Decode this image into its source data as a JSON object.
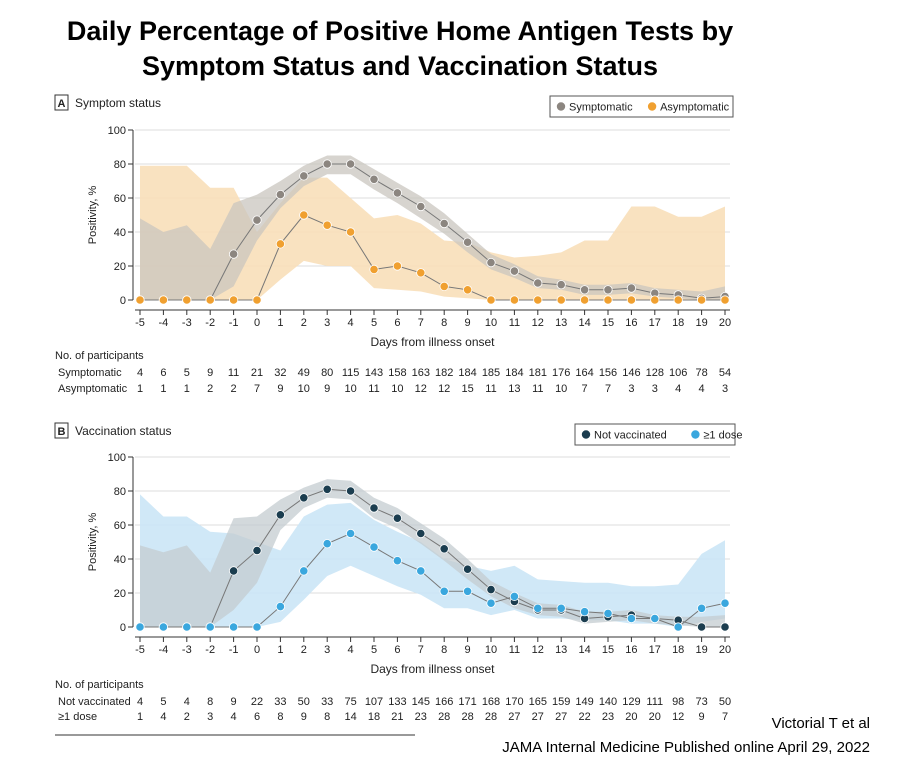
{
  "title": {
    "line1": "Daily Percentage of Positive Home Antigen Tests by",
    "line2": "Symptom Status and Vaccination Status"
  },
  "citation": {
    "line1": "Victorial T et al",
    "line2": "JAMA Internal Medicine Published online April 29, 2022"
  },
  "chart_data": [
    {
      "type": "line",
      "panel_letter": "A",
      "panel_title": "Symptom status",
      "xlabel": "Days from illness onset",
      "ylabel": "Positivity, %",
      "x": [
        -5,
        -4,
        -3,
        -2,
        -1,
        0,
        1,
        2,
        3,
        4,
        5,
        6,
        7,
        8,
        9,
        10,
        11,
        12,
        13,
        14,
        15,
        16,
        17,
        18,
        19,
        20
      ],
      "ylim": [
        0,
        100
      ],
      "yticks": [
        0,
        20,
        40,
        60,
        80,
        100
      ],
      "grid": "horizontal",
      "legend_position": "top-right",
      "series": [
        {
          "name": "Symptomatic",
          "color": "#8c8680",
          "band_color": "#c9c5bf",
          "values": [
            0,
            0,
            0,
            0,
            27,
            47,
            62,
            73,
            80,
            80,
            71,
            63,
            55,
            45,
            34,
            22,
            17,
            10,
            9,
            6,
            6,
            7,
            4,
            3,
            1,
            2
          ],
          "lower": [
            0,
            0,
            0,
            0,
            8,
            35,
            54,
            67,
            74,
            74,
            65,
            57,
            48,
            39,
            28,
            18,
            13,
            7,
            6,
            3,
            3,
            4,
            2,
            1,
            0,
            0
          ],
          "upper": [
            48,
            40,
            44,
            30,
            57,
            62,
            70,
            79,
            85,
            85,
            77,
            69,
            61,
            51,
            39,
            27,
            21,
            14,
            12,
            9,
            9,
            10,
            7,
            6,
            5,
            8
          ]
        },
        {
          "name": "Asymptomatic",
          "color": "#f0a030",
          "band_color": "#f8dfb9",
          "values": [
            0,
            0,
            0,
            0,
            0,
            0,
            33,
            50,
            44,
            40,
            18,
            20,
            16,
            8,
            6,
            0,
            0,
            0,
            0,
            0,
            0,
            0,
            0,
            0,
            0,
            0
          ],
          "lower": [
            0,
            0,
            0,
            0,
            0,
            0,
            12,
            23,
            20,
            20,
            7,
            6,
            5,
            2,
            1,
            0,
            0,
            0,
            0,
            0,
            0,
            0,
            0,
            0,
            0,
            0
          ],
          "upper": [
            79,
            79,
            79,
            66,
            66,
            40,
            57,
            72,
            72,
            60,
            48,
            50,
            45,
            35,
            34,
            28,
            25,
            26,
            28,
            35,
            35,
            55,
            55,
            49,
            49,
            55
          ]
        }
      ],
      "participants": {
        "heading": "No. of participants",
        "rows": [
          {
            "label": "Symptomatic",
            "counts": [
              "4",
              "6",
              "5",
              "9",
              "11",
              "21",
              "32",
              "49",
              "80",
              "115",
              "143",
              "158",
              "163",
              "182",
              "184",
              "185",
              "184",
              "181",
              "176",
              "164",
              "156",
              "146",
              "128",
              "106",
              "78",
              "54"
            ]
          },
          {
            "label": "Asymptomatic",
            "counts": [
              "1",
              "1",
              "1",
              "2",
              "2",
              "7",
              "9",
              "10",
              "9",
              "10",
              "11",
              "10",
              "12",
              "12",
              "15",
              "11",
              "13",
              "11",
              "10",
              "7",
              "7",
              "3",
              "3",
              "4",
              "4",
              "3"
            ]
          }
        ]
      }
    },
    {
      "type": "line",
      "panel_letter": "B",
      "panel_title": "Vaccination status",
      "xlabel": "Days from illness onset",
      "ylabel": "Positivity, %",
      "x": [
        -5,
        -4,
        -3,
        -2,
        -1,
        0,
        1,
        2,
        3,
        4,
        5,
        6,
        7,
        8,
        9,
        10,
        11,
        12,
        13,
        14,
        15,
        16,
        17,
        18,
        19,
        20
      ],
      "ylim": [
        0,
        100
      ],
      "yticks": [
        0,
        20,
        40,
        60,
        80,
        100
      ],
      "grid": "horizontal",
      "legend_position": "top-right",
      "series": [
        {
          "name": "Not vaccinated",
          "color": "#1b3d4f",
          "band_color": "#c4ccd0",
          "values": [
            0,
            0,
            0,
            0,
            33,
            45,
            66,
            76,
            81,
            80,
            70,
            64,
            55,
            46,
            34,
            22,
            15,
            10,
            10,
            5,
            6,
            7,
            5,
            4,
            0,
            0
          ],
          "lower": [
            0,
            0,
            0,
            0,
            10,
            26,
            57,
            70,
            76,
            75,
            64,
            58,
            49,
            39,
            28,
            18,
            11,
            7,
            6,
            2,
            3,
            4,
            2,
            1,
            0,
            0
          ],
          "upper": [
            48,
            44,
            48,
            32,
            64,
            65,
            75,
            82,
            87,
            86,
            76,
            70,
            61,
            52,
            40,
            27,
            20,
            14,
            13,
            9,
            9,
            10,
            7,
            6,
            6,
            7
          ]
        },
        {
          "name": "≥1 dose",
          "color": "#3aa7de",
          "band_color": "#cbe6f6",
          "values": [
            0,
            0,
            0,
            0,
            0,
            0,
            12,
            33,
            49,
            55,
            47,
            39,
            33,
            21,
            21,
            14,
            18,
            11,
            11,
            9,
            8,
            5,
            5,
            0,
            11,
            14
          ],
          "lower": [
            0,
            0,
            0,
            0,
            0,
            0,
            3,
            16,
            30,
            36,
            30,
            24,
            19,
            11,
            11,
            7,
            10,
            5,
            5,
            4,
            4,
            2,
            2,
            0,
            3,
            5
          ],
          "upper": [
            78,
            65,
            65,
            56,
            55,
            50,
            45,
            65,
            72,
            73,
            63,
            56,
            50,
            40,
            36,
            33,
            36,
            28,
            27,
            26,
            26,
            24,
            24,
            25,
            43,
            51
          ]
        }
      ],
      "participants": {
        "heading": "No. of participants",
        "rows": [
          {
            "label": "Not vaccinated",
            "counts": [
              "4",
              "5",
              "4",
              "8",
              "9",
              "22",
              "33",
              "50",
              "33",
              "75",
              "107",
              "133",
              "145",
              "166",
              "171",
              "168",
              "170",
              "165",
              "159",
              "149",
              "140",
              "129",
              "111",
              "98",
              "73",
              "50"
            ]
          },
          {
            "label": "≥1 dose",
            "counts": [
              "1",
              "4",
              "2",
              "3",
              "4",
              "6",
              "8",
              "9",
              "8",
              "14",
              "18",
              "21",
              "23",
              "28",
              "28",
              "28",
              "27",
              "27",
              "27",
              "22",
              "23",
              "20",
              "20",
              "12",
              "9",
              "7"
            ]
          }
        ]
      }
    }
  ]
}
